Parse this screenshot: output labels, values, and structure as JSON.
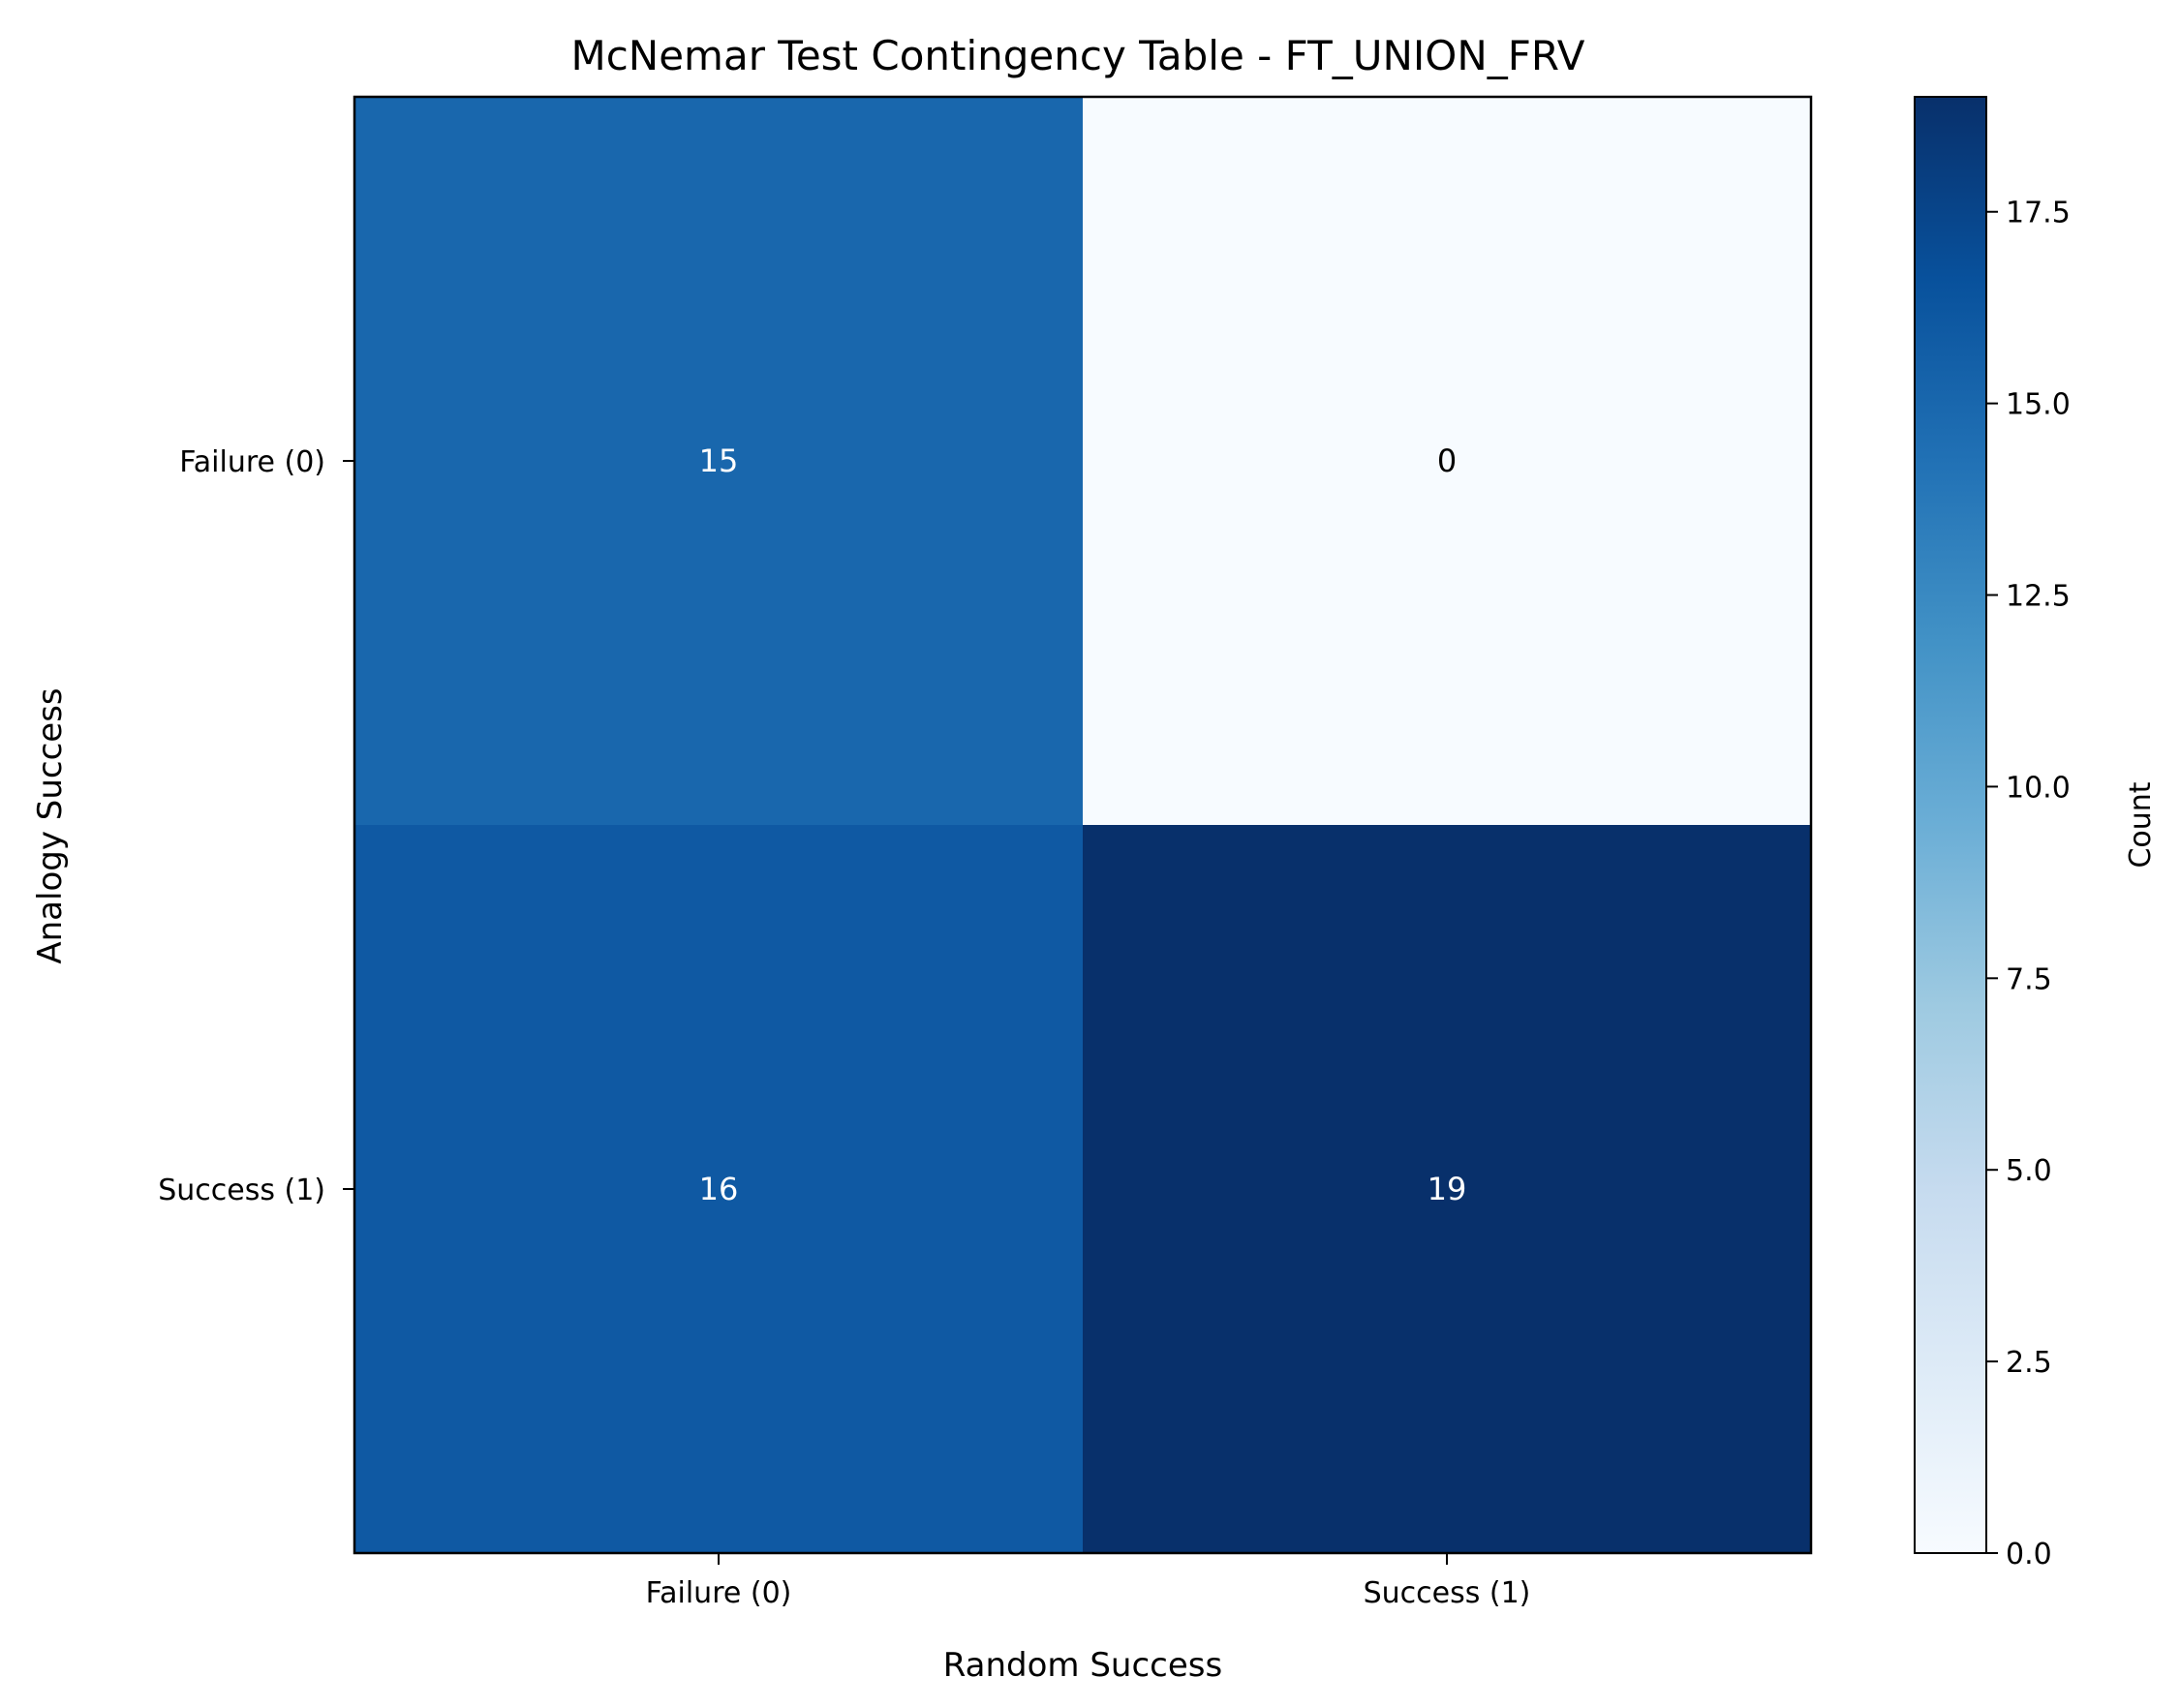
{
  "chart_data": {
    "type": "heatmap",
    "title": "McNemar Test Contingency Table - FT_UNION_FRV",
    "xlabel": "Random Success",
    "ylabel": "Analogy Success",
    "x_categories": [
      "Failure (0)",
      "Success (1)"
    ],
    "y_categories": [
      "Failure (0)",
      "Success (1)"
    ],
    "values": [
      [
        15,
        0
      ],
      [
        16,
        19
      ]
    ],
    "colorbar": {
      "label": "Count",
      "range": [
        0,
        19
      ],
      "ticks": [
        "0.0",
        "2.5",
        "5.0",
        "7.5",
        "10.0",
        "12.5",
        "15.0",
        "17.5"
      ],
      "colormap": "Blues"
    },
    "grid": false
  }
}
